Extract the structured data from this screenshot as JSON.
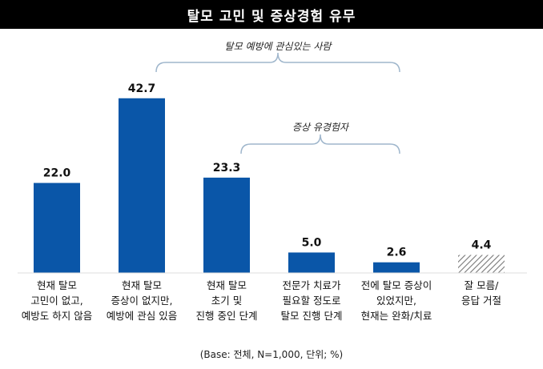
{
  "title": "탈모 고민 및 증상경험 유무",
  "base_note": "(Base: 전체, N=1,000, 단위; %)",
  "colors": {
    "bar": "#0a56a8",
    "hatch": "#777777",
    "brace": "#9fb6cc",
    "title_bg": "#000000"
  },
  "chart_data": {
    "type": "bar",
    "title": "탈모 고민 및 증상경험 유무",
    "xlabel": "",
    "ylabel": "",
    "ylim": [
      0,
      45
    ],
    "grid": false,
    "categories": [
      [
        "현재 탈모",
        "고민이 없고,",
        "예방도 하지 않음"
      ],
      [
        "현재 탈모",
        "증상이 없지만,",
        "예방에 관심 있음"
      ],
      [
        "현재 탈모",
        "초기 및",
        "진행 중인 단계"
      ],
      [
        "전문가 치료가",
        "필요할 정도로",
        "탈모 진행 단계"
      ],
      [
        "전에 탈모 증상이",
        "있었지만,",
        "현재는 완화/치료"
      ],
      [
        "잘 모름/",
        "응답 거절"
      ]
    ],
    "values": [
      22.0,
      42.7,
      23.3,
      5.0,
      2.6,
      4.4
    ],
    "value_labels": [
      "22.0",
      "42.7",
      "23.3",
      "5.0",
      "2.6",
      "4.4"
    ],
    "hatched": [
      false,
      false,
      false,
      false,
      false,
      true
    ],
    "annotations": [
      {
        "text": "탈모 예방에 관심있는 사람",
        "from_index": 1,
        "to_index": 4
      },
      {
        "text": "증상 유경험자",
        "from_index": 2,
        "to_index": 4
      }
    ]
  }
}
